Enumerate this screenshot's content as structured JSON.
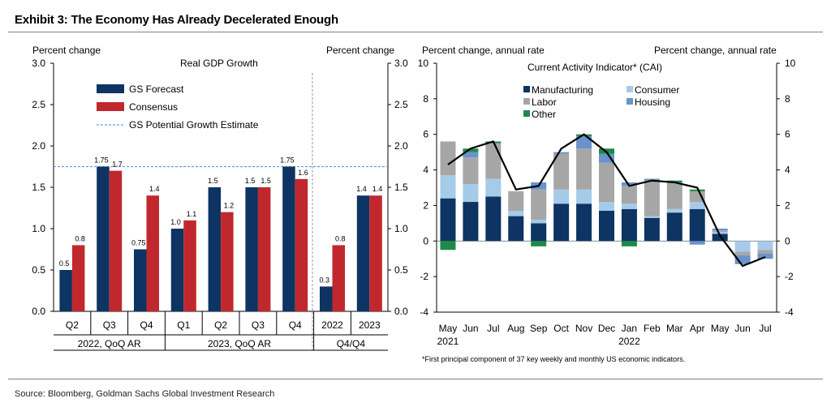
{
  "header": {
    "title": "Exhibit 3: The Economy Has Already Decelerated Enough"
  },
  "footer": {
    "source": "Source: Bloomberg, Goldman Sachs Global Investment Research"
  },
  "colors": {
    "gs_forecast": "#0d3462",
    "consensus": "#c0282d",
    "potential": "#6d9bd1",
    "manufacturing": "#0d3462",
    "consumer": "#a6cbe9",
    "labor": "#a6a6a6",
    "housing": "#6a93cc",
    "other": "#1e8a4a",
    "cai_line": "#000000"
  },
  "chart_data": [
    {
      "type": "bar",
      "title": "Real GDP Growth",
      "ylabel_left": "Percent change",
      "ylabel_right": "Percent change",
      "ylim": [
        0,
        3.0
      ],
      "yticks": [
        "0.0",
        "0.5",
        "1.0",
        "1.5",
        "2.0",
        "2.5",
        "3.0"
      ],
      "categories": [
        "Q2",
        "Q3",
        "Q4",
        "Q1",
        "Q2",
        "Q3",
        "Q4",
        "2022",
        "2023"
      ],
      "groups": [
        {
          "label": "2022, QoQ AR",
          "span": [
            0,
            2
          ]
        },
        {
          "label": "2023, QoQ AR",
          "span": [
            3,
            6
          ]
        },
        {
          "label": "Q4/Q4",
          "span": [
            7,
            8
          ]
        }
      ],
      "series": [
        {
          "name": "GS Forecast",
          "values": [
            0.5,
            1.75,
            0.75,
            1.0,
            1.5,
            1.5,
            1.75,
            0.3,
            1.4
          ],
          "labels": [
            "0.5",
            "1.75",
            "0.75",
            "1.0",
            "1.5",
            "1.5",
            "1.75",
            "0.3",
            "1.4"
          ]
        },
        {
          "name": "Consensus",
          "values": [
            0.8,
            1.7,
            1.4,
            1.1,
            1.2,
            1.5,
            1.6,
            0.8,
            1.4
          ],
          "labels": [
            "0.8",
            "1.7",
            "1.4",
            "1.1",
            "1.2",
            "1.5",
            "1.6",
            "0.8",
            "1.4"
          ]
        }
      ],
      "reference_line": {
        "name": "GS Potential Growth Estimate",
        "value": 1.75
      },
      "grid": false,
      "legend": "top-left"
    },
    {
      "type": "bar",
      "stacked": true,
      "title": "Current Activity Indicator* (CAI)",
      "ylabel_left": "Percent change, annual rate",
      "ylabel_right": "Percent change, annual rate",
      "ylim": [
        -4,
        10
      ],
      "yticks": [
        "-4",
        "-2",
        "0",
        "2",
        "4",
        "6",
        "8",
        "10"
      ],
      "categories": [
        "May",
        "Jun",
        "Jul",
        "Aug",
        "Sep",
        "Oct",
        "Nov",
        "Dec",
        "Jan",
        "Feb",
        "Mar",
        "Apr",
        "May",
        "Jun",
        "Jul"
      ],
      "year_labels": [
        {
          "index": 0,
          "label": "2021"
        },
        {
          "index": 8,
          "label": "2022"
        }
      ],
      "series": [
        {
          "name": "Manufacturing",
          "values": [
            2.4,
            2.2,
            2.5,
            1.4,
            1.0,
            2.1,
            2.1,
            1.7,
            1.8,
            1.3,
            1.6,
            1.8,
            0.4,
            0.0,
            0.0
          ]
        },
        {
          "name": "Consumer",
          "values": [
            1.3,
            1.0,
            1.0,
            0.3,
            0.2,
            0.8,
            0.8,
            0.5,
            0.3,
            0.1,
            0.2,
            0.4,
            0.1,
            -0.6,
            -0.5
          ]
        },
        {
          "name": "Labor",
          "values": [
            1.9,
            1.5,
            2.0,
            1.1,
            1.7,
            2.0,
            2.3,
            2.2,
            1.0,
            2.0,
            1.5,
            0.6,
            0.1,
            -0.2,
            -0.2
          ]
        },
        {
          "name": "Housing",
          "values": [
            0.0,
            0.3,
            0.0,
            0.0,
            0.4,
            0.1,
            0.7,
            0.5,
            0.2,
            0.1,
            0.0,
            -0.2,
            0.1,
            -0.5,
            -0.3
          ]
        },
        {
          "name": "Other",
          "values": [
            -0.5,
            0.2,
            0.1,
            0.0,
            -0.3,
            0.0,
            0.1,
            0.3,
            -0.3,
            0.0,
            0.1,
            0.1,
            0.0,
            0.0,
            0.0
          ]
        }
      ],
      "line": {
        "name": "CAI",
        "values": [
          4.3,
          5.2,
          5.6,
          2.9,
          3.1,
          5.2,
          6.0,
          5.0,
          3.1,
          3.4,
          3.3,
          3.0,
          0.3,
          -1.4,
          -0.9
        ]
      },
      "grid": false,
      "legend": "top-left",
      "footnote": "*First principal component of 37 key weekly and monthly US economic indicators."
    }
  ]
}
